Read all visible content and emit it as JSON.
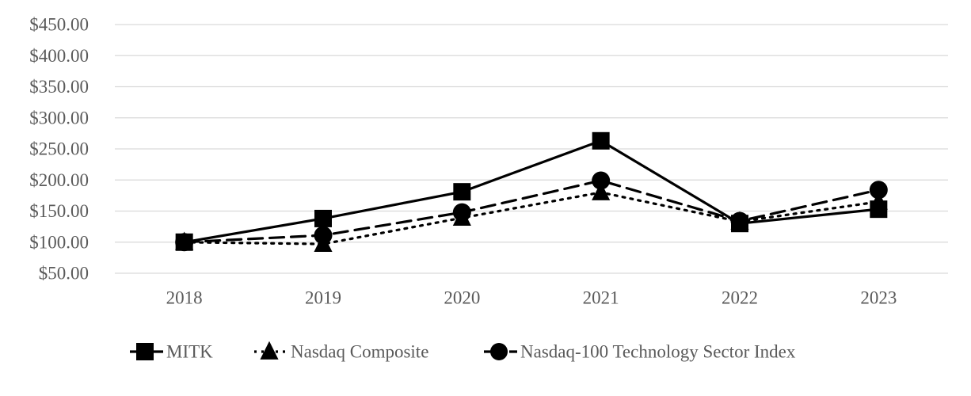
{
  "chart_data": {
    "type": "line",
    "title": "",
    "xlabel": "",
    "ylabel": "",
    "categories": [
      "2018",
      "2019",
      "2020",
      "2021",
      "2022",
      "2023"
    ],
    "ylim": [
      50,
      450
    ],
    "y_ticks": [
      50,
      100,
      150,
      200,
      250,
      300,
      350,
      400,
      450
    ],
    "y_tick_labels": [
      "$50.00",
      "$100.00",
      "$150.00",
      "$200.00",
      "$250.00",
      "$300.00",
      "$350.00",
      "$400.00",
      "$450.00"
    ],
    "grid": "horizontal",
    "legend_position": "bottom",
    "series": [
      {
        "name": "MITK",
        "values": [
          100,
          138,
          181,
          263,
          130,
          153
        ],
        "line_style": "solid",
        "marker": "square",
        "color": "#000000"
      },
      {
        "name": "Nasdaq Composite",
        "values": [
          100,
          97,
          139,
          180,
          133,
          165
        ],
        "line_style": "dotted",
        "marker": "triangle",
        "color": "#000000"
      },
      {
        "name": "Nasdaq-100 Technology Sector Index",
        "values": [
          100,
          111,
          148,
          199,
          134,
          184
        ],
        "line_style": "dashed",
        "marker": "circle",
        "color": "#000000"
      }
    ],
    "colors": {
      "axis_text": "#5a5a5a",
      "gridline": "#d9d9d9",
      "line": "#000000"
    }
  }
}
